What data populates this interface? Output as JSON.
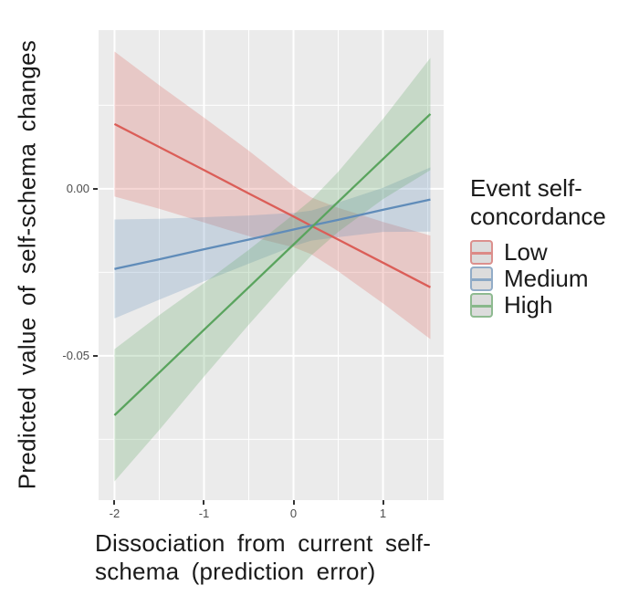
{
  "chart_data": {
    "type": "line",
    "title": "",
    "xlabel": "Dissociation from current self-\nschema (prediction error)",
    "xlabel_lines": [
      "Dissociation from current self-",
      "schema (prediction error)"
    ],
    "ylabel": "Predicted value of self-schema changes",
    "xlim": [
      -2.178,
      1.678
    ],
    "ylim": [
      -0.0932,
      0.0475
    ],
    "grid": true,
    "panel_bg": "#ebebeb",
    "grid_color": "#ffffff",
    "band_opacity": 0.25,
    "x_ticks": {
      "major": [
        -2,
        -1,
        0,
        1
      ],
      "minor": [
        -1.5,
        -0.5,
        0.5,
        1.5
      ],
      "labels": [
        "-2",
        "-1",
        "0",
        "1"
      ]
    },
    "y_ticks": {
      "major": [
        0,
        -0.05
      ],
      "minor": [
        0.025,
        -0.025,
        -0.075
      ],
      "labels": [
        "0.00",
        "-0.05"
      ]
    },
    "legend": {
      "title": "Event self-\nconcordance",
      "title_lines": [
        "Event self-",
        "concordance"
      ],
      "position": "right",
      "items": [
        {
          "label": "Low",
          "color": "#db5e58"
        },
        {
          "label": "Medium",
          "color": "#608cb9"
        },
        {
          "label": "High",
          "color": "#5aa45e"
        }
      ]
    },
    "series": [
      {
        "name": "Low",
        "color": "#db5e58",
        "x": [
          -2,
          -1.5,
          -1,
          -0.5,
          0,
          0.2,
          0.5,
          1,
          1.53
        ],
        "y": [
          0.0194,
          0.0125,
          0.0056,
          -0.0014,
          -0.0083,
          -0.0111,
          -0.0152,
          -0.0221,
          -0.0295
        ],
        "ci_halfwidth": [
          0.0217,
          0.0185,
          0.0157,
          0.0128,
          0.0092,
          0.0085,
          0.0095,
          0.0122,
          0.0155
        ]
      },
      {
        "name": "Medium",
        "color": "#608cb9",
        "x": [
          -2,
          -1.5,
          -1,
          -0.5,
          0,
          0.2,
          0.5,
          1,
          1.53
        ],
        "y": [
          -0.024,
          -0.0211,
          -0.0181,
          -0.0152,
          -0.0122,
          -0.011,
          -0.0093,
          -0.0063,
          -0.0032
        ],
        "ci_halfwidth": [
          0.0148,
          0.0121,
          0.0096,
          0.0072,
          0.005,
          0.0045,
          0.0052,
          0.0066,
          0.0096
        ]
      },
      {
        "name": "High",
        "color": "#5aa45e",
        "x": [
          -2,
          -1.5,
          -1,
          -0.5,
          0,
          0.2,
          0.5,
          1,
          1.53
        ],
        "y": [
          -0.0678,
          -0.055,
          -0.0422,
          -0.0295,
          -0.0167,
          -0.0116,
          -0.0039,
          0.0089,
          0.0224
        ],
        "ci_halfwidth": [
          0.0198,
          0.0172,
          0.014,
          0.0112,
          0.009,
          0.0083,
          0.009,
          0.012,
          0.0168
        ]
      }
    ]
  }
}
